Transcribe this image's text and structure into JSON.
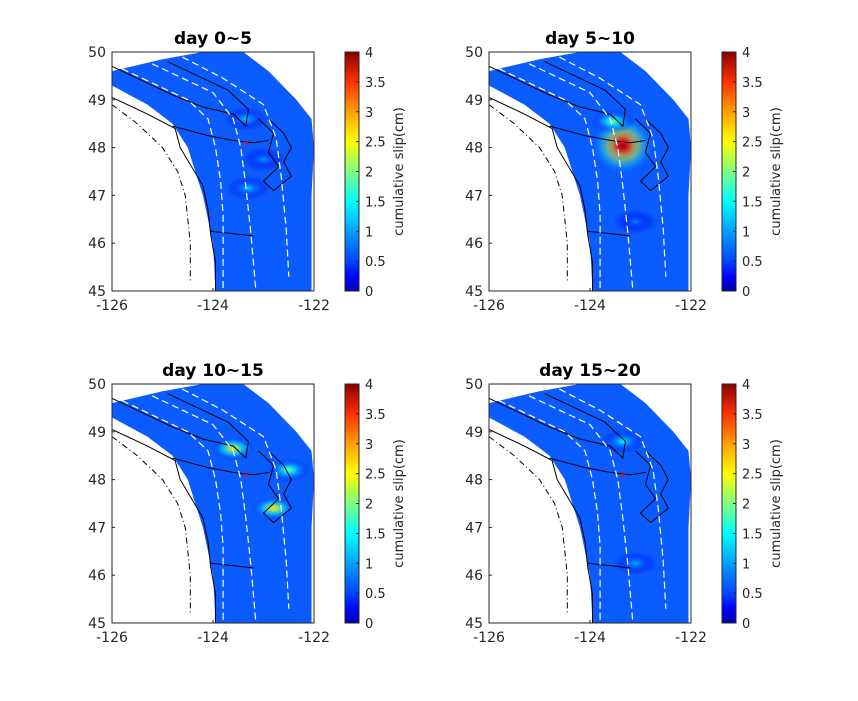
{
  "chart_data": [
    {
      "type": "heatmap",
      "title": "day 0~5",
      "x_ticks": [
        -126,
        -124,
        -122
      ],
      "y_ticks": [
        45,
        46,
        47,
        48,
        49,
        50
      ],
      "xlim": [
        -126,
        -122
      ],
      "ylim": [
        45,
        50
      ],
      "colorbar": {
        "label": "cumulative slip(cm)",
        "ticks": [
          0,
          0.5,
          1,
          1.5,
          2,
          2.5,
          3,
          3.5,
          4
        ],
        "range": [
          0,
          4
        ],
        "colormap": "jet"
      },
      "marker": {
        "lon": -123.35,
        "lat": 48.05,
        "color": "#ff0000"
      },
      "hotspots": [
        {
          "lon": -123.35,
          "lat": 48.6,
          "value": 1.3
        },
        {
          "lon": -123.0,
          "lat": 47.75,
          "value": 1.1
        },
        {
          "lon": -123.3,
          "lat": 47.15,
          "value": 1.3
        }
      ]
    },
    {
      "type": "heatmap",
      "title": "day 5~10",
      "x_ticks": [
        -126,
        -124,
        -122
      ],
      "y_ticks": [
        45,
        46,
        47,
        48,
        49,
        50
      ],
      "xlim": [
        -126,
        -122
      ],
      "ylim": [
        45,
        50
      ],
      "colorbar": {
        "label": "cumulative slip(cm)",
        "ticks": [
          0,
          0.5,
          1,
          1.5,
          2,
          2.5,
          3,
          3.5,
          4
        ],
        "range": [
          0,
          4
        ],
        "colormap": "jet"
      },
      "marker": {
        "lon": -123.35,
        "lat": 48.05,
        "color": "#ff0000"
      },
      "hotspots": [
        {
          "lon": -123.35,
          "lat": 48.05,
          "value": 4.0
        },
        {
          "lon": -123.55,
          "lat": 48.55,
          "value": 2.0
        },
        {
          "lon": -123.1,
          "lat": 46.45,
          "value": 1.0
        }
      ]
    },
    {
      "type": "heatmap",
      "title": "day 10~15",
      "x_ticks": [
        -126,
        -124,
        -122
      ],
      "y_ticks": [
        45,
        46,
        47,
        48,
        49,
        50
      ],
      "xlim": [
        -126,
        -122
      ],
      "ylim": [
        45,
        50
      ],
      "colorbar": {
        "label": "cumulative slip(cm)",
        "ticks": [
          0,
          0.5,
          1,
          1.5,
          2,
          2.5,
          3,
          3.5,
          4
        ],
        "range": [
          0,
          4
        ],
        "colormap": "jet"
      },
      "marker": {
        "lon": -123.35,
        "lat": 48.05,
        "color": "#ff0000"
      },
      "hotspots": [
        {
          "lon": -123.6,
          "lat": 48.65,
          "value": 2.6
        },
        {
          "lon": -122.8,
          "lat": 47.4,
          "value": 2.7
        },
        {
          "lon": -122.5,
          "lat": 48.2,
          "value": 2.0
        }
      ]
    },
    {
      "type": "heatmap",
      "title": "day 15~20",
      "x_ticks": [
        -126,
        -124,
        -122
      ],
      "y_ticks": [
        45,
        46,
        47,
        48,
        49,
        50
      ],
      "xlim": [
        -126,
        -122
      ],
      "ylim": [
        45,
        50
      ],
      "colorbar": {
        "label": "cumulative slip(cm)",
        "ticks": [
          0,
          0.5,
          1,
          1.5,
          2,
          2.5,
          3,
          3.5,
          4
        ],
        "range": [
          0,
          4
        ],
        "colormap": "jet"
      },
      "marker": {
        "lon": -123.35,
        "lat": 48.05,
        "color": "#ff0000"
      },
      "hotspots": [
        {
          "lon": -123.35,
          "lat": 48.8,
          "value": 1.5
        },
        {
          "lon": -123.1,
          "lat": 46.25,
          "value": 1.2
        }
      ]
    }
  ]
}
